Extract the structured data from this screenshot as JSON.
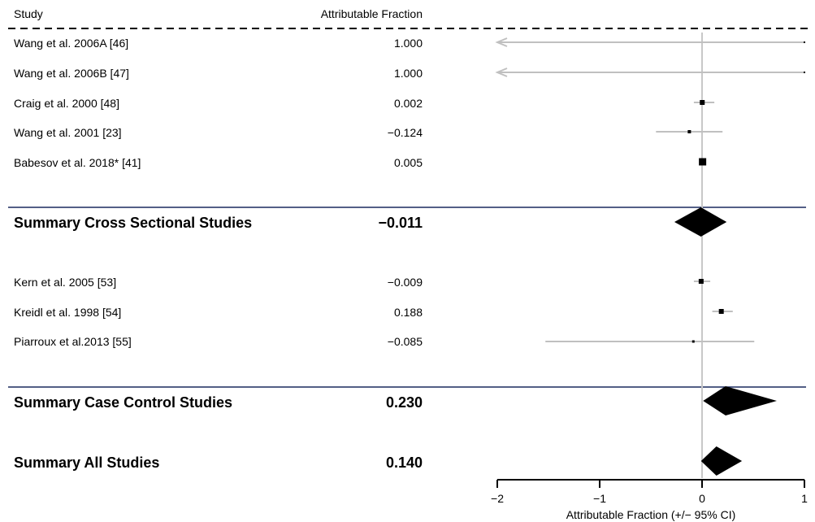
{
  "header": {
    "study_label": "Study",
    "af_label": "Attributable Fraction"
  },
  "chart_data": {
    "type": "forest",
    "xlabel": "Attributable Fraction (+/− 95% CI)",
    "xlim": [
      -2,
      1
    ],
    "xticks": [
      -2,
      -1,
      0,
      1
    ],
    "xtick_labels": [
      "−2",
      "−1",
      "0",
      "1"
    ],
    "reference_line": 0,
    "colors": {
      "ci_line": "#c0c0c0",
      "point": "#000000",
      "divider": "#1a2a5e"
    },
    "groups": [
      {
        "studies": [
          {
            "label": "Wang et al. 2006A [46]",
            "value_text": "1.000",
            "af": 1.0,
            "ci": [
              -2.0,
              1.0
            ],
            "ci_arrow_left": true
          },
          {
            "label": "Wang et al. 2006B [47]",
            "value_text": "1.000",
            "af": 1.0,
            "ci": [
              -2.0,
              1.0
            ],
            "ci_arrow_left": true
          },
          {
            "label": "Craig et al. 2000 [48]",
            "value_text": "0.002",
            "af": 0.002,
            "ci": [
              -0.08,
              0.12
            ]
          },
          {
            "label": "Wang et al. 2001 [23]",
            "value_text": "−0.124",
            "af": -0.124,
            "ci": [
              -0.45,
              0.2
            ]
          },
          {
            "label": "Babesov et al. 2018* [41]",
            "value_text": "0.005",
            "af": 0.005,
            "ci": [
              -0.02,
              0.03
            ]
          }
        ],
        "summary": {
          "label": "Summary Cross Sectional Studies",
          "value_text": "−0.011",
          "af": -0.011,
          "ci": [
            -0.27,
            0.24
          ]
        }
      },
      {
        "studies": [
          {
            "label": "Kern et al. 2005 [53]",
            "value_text": "−0.009",
            "af": -0.009,
            "ci": [
              -0.08,
              0.08
            ]
          },
          {
            "label": "Kreidl et al. 1998 [54]",
            "value_text": "0.188",
            "af": 0.188,
            "ci": [
              0.1,
              0.3
            ]
          },
          {
            "label": "Piarroux et al.2013 [55]",
            "value_text": "−0.085",
            "af": -0.085,
            "ci": [
              -1.53,
              0.51
            ]
          }
        ],
        "summary": {
          "label": "Summary Case Control Studies",
          "value_text": "0.230",
          "af": 0.23,
          "ci": [
            0.01,
            0.73
          ]
        }
      }
    ],
    "overall": {
      "label": "Summary All Studies",
      "value_text": "0.140",
      "af": 0.14,
      "ci": [
        -0.01,
        0.39
      ]
    }
  }
}
